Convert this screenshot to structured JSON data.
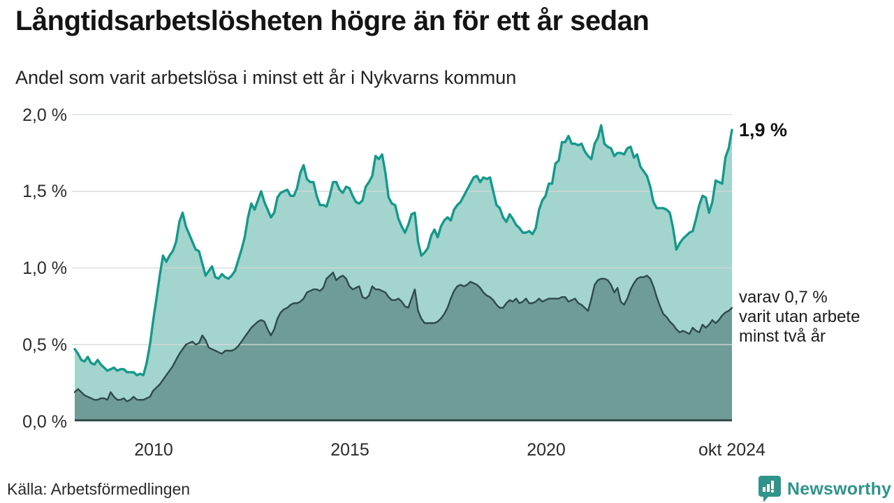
{
  "title": "Långtidsarbetslösheten högre än för ett år sedan",
  "subtitle": "Andel som varit arbetslösa i minst ett år i Nykvarns kommun",
  "source": "Källa: Arbetsförmedlingen",
  "branding": {
    "name": "Newsworthy"
  },
  "annotations": {
    "latest_value": "1,9 %",
    "secondary_line1": "varav 0,7 %",
    "secondary_line2": "varit utan arbete",
    "secondary_line3": "minst två år"
  },
  "colors": {
    "accent_line": "#14998a",
    "accent_fill": "#a3d4cd",
    "dark_line": "#2d4b47",
    "dark_fill": "#6f9c96",
    "grid": "#d5d8d7",
    "brand_teal": "#2f948a"
  },
  "chart_data": {
    "type": "area",
    "title": "Långtidsarbetslösheten högre än för ett år sedan",
    "subtitle": "Andel som varit arbetslösa i minst ett år i Nykvarns kommun",
    "x_start": "2008-01",
    "x_end": "2024-10",
    "x_tick_labels": [
      "2010",
      "2015",
      "2020",
      "okt 2024"
    ],
    "x_tick_positions": [
      220,
      501,
      782,
      1048
    ],
    "y_tick_labels": [
      "0,0 %",
      "0,5 %",
      "1,0 %",
      "1,5 %",
      "2,0 %"
    ],
    "y_tick_values": [
      0.0,
      0.5,
      1.0,
      1.5,
      2.0
    ],
    "ylim": [
      0,
      2.0
    ],
    "grid": true,
    "legend_position": "right-annotations",
    "series": [
      {
        "name": "Andel arbetslösa minst ett år",
        "end_label": "1,9 %",
        "values": [
          0.47,
          0.44,
          0.4,
          0.39,
          0.42,
          0.38,
          0.37,
          0.4,
          0.37,
          0.35,
          0.33,
          0.34,
          0.35,
          0.33,
          0.34,
          0.34,
          0.32,
          0.32,
          0.32,
          0.3,
          0.31,
          0.3,
          0.38,
          0.5,
          0.66,
          0.8,
          0.95,
          1.08,
          1.04,
          1.08,
          1.11,
          1.17,
          1.3,
          1.36,
          1.27,
          1.22,
          1.17,
          1.12,
          1.11,
          1.03,
          0.95,
          0.98,
          1.01,
          0.94,
          0.93,
          0.96,
          0.94,
          0.93,
          0.95,
          0.98,
          1.05,
          1.12,
          1.2,
          1.33,
          1.42,
          1.38,
          1.44,
          1.5,
          1.43,
          1.38,
          1.33,
          1.36,
          1.46,
          1.49,
          1.5,
          1.51,
          1.47,
          1.47,
          1.52,
          1.62,
          1.67,
          1.58,
          1.56,
          1.56,
          1.47,
          1.41,
          1.41,
          1.4,
          1.47,
          1.56,
          1.56,
          1.51,
          1.49,
          1.53,
          1.52,
          1.47,
          1.43,
          1.42,
          1.44,
          1.53,
          1.56,
          1.6,
          1.73,
          1.71,
          1.74,
          1.62,
          1.46,
          1.42,
          1.41,
          1.32,
          1.27,
          1.23,
          1.28,
          1.35,
          1.36,
          1.17,
          1.08,
          1.1,
          1.13,
          1.21,
          1.25,
          1.2,
          1.27,
          1.31,
          1.33,
          1.31,
          1.38,
          1.41,
          1.43,
          1.47,
          1.51,
          1.55,
          1.59,
          1.6,
          1.56,
          1.59,
          1.58,
          1.59,
          1.5,
          1.41,
          1.39,
          1.33,
          1.3,
          1.35,
          1.32,
          1.28,
          1.26,
          1.23,
          1.23,
          1.24,
          1.22,
          1.26,
          1.38,
          1.44,
          1.47,
          1.55,
          1.55,
          1.68,
          1.7,
          1.82,
          1.82,
          1.86,
          1.81,
          1.81,
          1.8,
          1.81,
          1.76,
          1.73,
          1.71,
          1.81,
          1.85,
          1.93,
          1.81,
          1.79,
          1.78,
          1.73,
          1.75,
          1.75,
          1.74,
          1.78,
          1.79,
          1.72,
          1.74,
          1.66,
          1.63,
          1.6,
          1.53,
          1.43,
          1.39,
          1.39,
          1.39,
          1.38,
          1.36,
          1.26,
          1.12,
          1.16,
          1.19,
          1.21,
          1.23,
          1.24,
          1.32,
          1.41,
          1.47,
          1.46,
          1.36,
          1.43,
          1.57,
          1.56,
          1.55,
          1.72,
          1.78,
          1.9
        ]
      },
      {
        "name": "varav utan arbete minst två år",
        "end_label": "0,7 %",
        "values": [
          0.19,
          0.21,
          0.19,
          0.17,
          0.16,
          0.15,
          0.14,
          0.14,
          0.15,
          0.15,
          0.14,
          0.19,
          0.16,
          0.14,
          0.14,
          0.15,
          0.13,
          0.14,
          0.16,
          0.14,
          0.14,
          0.14,
          0.15,
          0.16,
          0.2,
          0.22,
          0.24,
          0.27,
          0.3,
          0.33,
          0.36,
          0.4,
          0.44,
          0.47,
          0.5,
          0.51,
          0.52,
          0.5,
          0.51,
          0.56,
          0.53,
          0.48,
          0.47,
          0.46,
          0.45,
          0.44,
          0.46,
          0.46,
          0.46,
          0.47,
          0.49,
          0.52,
          0.55,
          0.58,
          0.61,
          0.63,
          0.65,
          0.66,
          0.65,
          0.6,
          0.56,
          0.6,
          0.67,
          0.71,
          0.73,
          0.74,
          0.76,
          0.77,
          0.77,
          0.78,
          0.8,
          0.84,
          0.85,
          0.86,
          0.86,
          0.85,
          0.87,
          0.93,
          0.95,
          0.97,
          0.92,
          0.94,
          0.95,
          0.93,
          0.88,
          0.86,
          0.87,
          0.88,
          0.81,
          0.8,
          0.82,
          0.88,
          0.86,
          0.86,
          0.85,
          0.84,
          0.81,
          0.79,
          0.79,
          0.8,
          0.78,
          0.75,
          0.74,
          0.8,
          0.86,
          0.72,
          0.67,
          0.64,
          0.64,
          0.64,
          0.64,
          0.65,
          0.67,
          0.7,
          0.74,
          0.8,
          0.85,
          0.88,
          0.89,
          0.88,
          0.89,
          0.91,
          0.9,
          0.89,
          0.87,
          0.84,
          0.82,
          0.81,
          0.79,
          0.76,
          0.74,
          0.74,
          0.77,
          0.79,
          0.78,
          0.8,
          0.77,
          0.78,
          0.8,
          0.77,
          0.77,
          0.78,
          0.8,
          0.78,
          0.79,
          0.8,
          0.8,
          0.8,
          0.8,
          0.81,
          0.81,
          0.78,
          0.79,
          0.8,
          0.77,
          0.76,
          0.74,
          0.72,
          0.8,
          0.89,
          0.92,
          0.93,
          0.93,
          0.92,
          0.89,
          0.84,
          0.87,
          0.78,
          0.76,
          0.8,
          0.86,
          0.9,
          0.93,
          0.94,
          0.94,
          0.95,
          0.93,
          0.88,
          0.81,
          0.75,
          0.7,
          0.68,
          0.65,
          0.63,
          0.6,
          0.58,
          0.59,
          0.58,
          0.57,
          0.61,
          0.59,
          0.58,
          0.63,
          0.61,
          0.63,
          0.66,
          0.64,
          0.66,
          0.69,
          0.71,
          0.72,
          0.74
        ]
      }
    ]
  }
}
